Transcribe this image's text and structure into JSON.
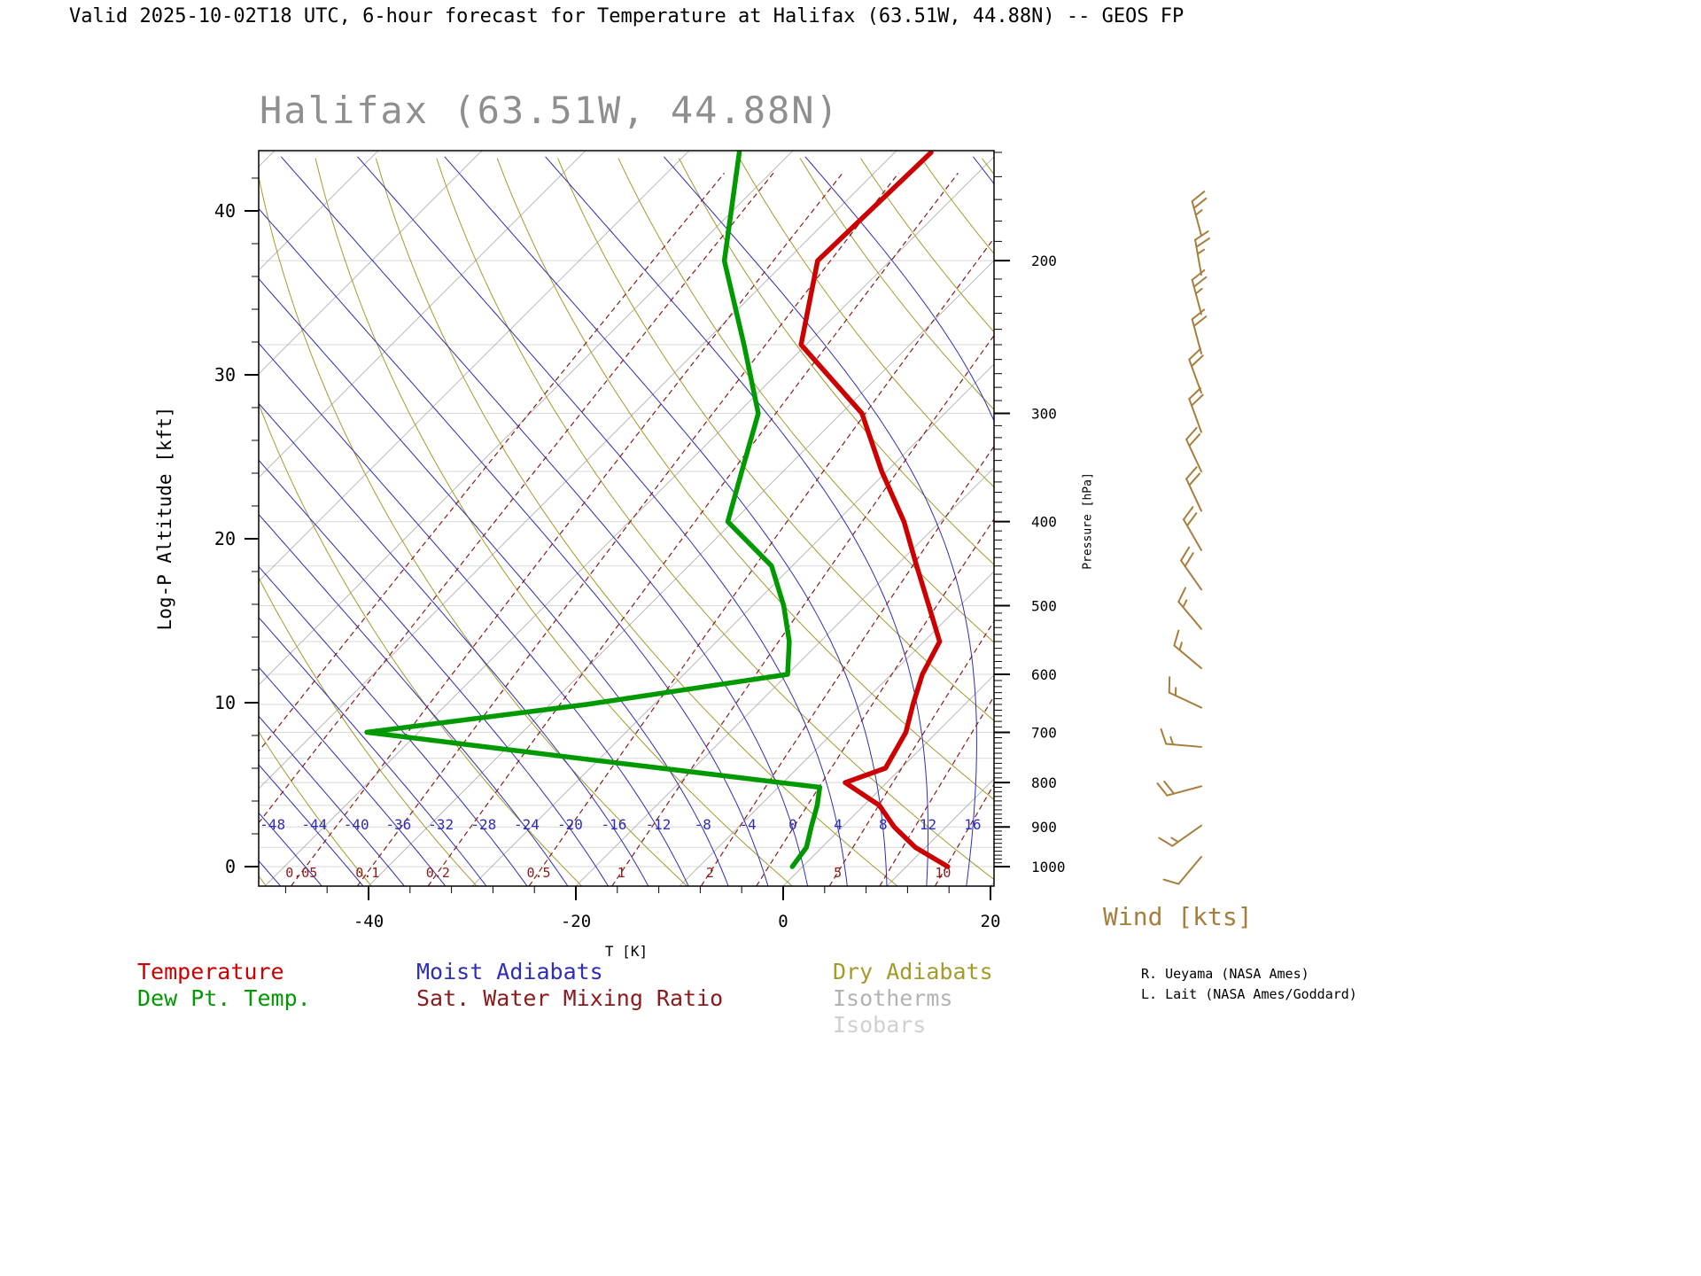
{
  "header": {
    "title": "Valid 2025-10-02T18 UTC, 6-hour forecast for Temperature at Halifax (63.51W, 44.88N) -- GEOS FP"
  },
  "chart_data": {
    "type": "line",
    "variant": "skew-T log-P sounding",
    "title": "Halifax (63.51W, 44.88N)",
    "xlabel": "T [K]",
    "ylabel_left": "Log-P Altitude [kft]",
    "ylabel_right": "Pressure [hPa]",
    "axes": {
      "x_ticks_K": [
        -40,
        -20,
        0,
        20
      ],
      "x_minor_ticks": {
        "min": -48,
        "max": 20,
        "step": 4
      },
      "alt_ticks_kft": [
        0,
        10,
        20,
        30,
        40
      ],
      "alt_minor_step_kft": 2,
      "pressure_ticks_hPa": [
        200,
        300,
        400,
        500,
        600,
        700,
        800,
        900,
        1000
      ],
      "pressure_minor_ticks": {
        "min": 150,
        "max": 1000,
        "step": 10
      },
      "alt_range_kft": [
        -1.19,
        43.67
      ],
      "temp_range_at_bottom_K": [
        -50.6,
        20.3
      ],
      "skew": "45deg isotherms",
      "grid": "skew-T background families"
    },
    "background": {
      "isotherms": {
        "min": -130,
        "max": 40,
        "step": 10
      },
      "isobars_hPa": [
        150,
        200,
        250,
        300,
        350,
        400,
        450,
        500,
        550,
        600,
        650,
        700,
        750,
        800,
        850,
        900,
        950,
        1000
      ],
      "dry_adiabats_theta_K": {
        "min": 220,
        "max": 400,
        "step": 10
      },
      "moist_adiabats_T1000_C": {
        "min": -64,
        "max": 40,
        "step": 4
      },
      "moist_adiabat_labels_C": [
        -48,
        -44,
        -40,
        -36,
        -32,
        -28,
        -24,
        -20,
        -16,
        -12,
        -8,
        -4,
        0,
        4,
        8,
        12,
        16
      ],
      "mixing_ratio_lines_gkg": [
        0.01,
        0.02,
        0.05,
        0.1,
        0.2,
        0.5,
        1,
        2,
        3,
        5,
        7,
        10,
        15,
        20
      ],
      "mixing_ratio_labels_gkg": [
        "0.05",
        "0.1",
        "0.2",
        "0.5",
        "1",
        "2",
        "5",
        "10"
      ]
    },
    "series": [
      {
        "name": "Temperature",
        "color": "#cc0000",
        "points_p_hPa_T_C": [
          [
            1000,
            14
          ],
          [
            950,
            9
          ],
          [
            900,
            5
          ],
          [
            850,
            1.5
          ],
          [
            800,
            -4
          ],
          [
            770,
            -1.5
          ],
          [
            700,
            -3
          ],
          [
            650,
            -5
          ],
          [
            600,
            -7
          ],
          [
            550,
            -8.5
          ],
          [
            500,
            -13
          ],
          [
            450,
            -18
          ],
          [
            400,
            -23.5
          ],
          [
            350,
            -30.5
          ],
          [
            300,
            -38
          ],
          [
            250,
            -50.5
          ],
          [
            200,
            -57
          ],
          [
            150,
            -56.5
          ]
        ]
      },
      {
        "name": "Dew Pt. Temp.",
        "color": "#009900",
        "points_p_hPa_T_C": [
          [
            1000,
            -1
          ],
          [
            950,
            -1.5
          ],
          [
            900,
            -3
          ],
          [
            850,
            -4.5
          ],
          [
            810,
            -6
          ],
          [
            750,
            -32
          ],
          [
            700,
            -55
          ],
          [
            650,
            -36.5
          ],
          [
            600,
            -20
          ],
          [
            550,
            -23
          ],
          [
            500,
            -27
          ],
          [
            450,
            -32
          ],
          [
            400,
            -40.5
          ],
          [
            350,
            -44
          ],
          [
            300,
            -48
          ],
          [
            250,
            -56
          ],
          [
            200,
            -66
          ],
          [
            150,
            -75
          ]
        ]
      }
    ],
    "wind_barbs": {
      "units": "kts",
      "label": "Wind [kts]",
      "levels": [
        {
          "alt_kft": 38.5,
          "speed_kts": 25,
          "dir_deg": 345
        },
        {
          "alt_kft": 36.1,
          "speed_kts": 25,
          "dir_deg": 350
        },
        {
          "alt_kft": 33.7,
          "speed_kts": 25,
          "dir_deg": 345
        },
        {
          "alt_kft": 31.3,
          "speed_kts": 20,
          "dir_deg": 345
        },
        {
          "alt_kft": 28.9,
          "speed_kts": 20,
          "dir_deg": 340
        },
        {
          "alt_kft": 26.5,
          "speed_kts": 20,
          "dir_deg": 340
        },
        {
          "alt_kft": 24.1,
          "speed_kts": 20,
          "dir_deg": 335
        },
        {
          "alt_kft": 21.7,
          "speed_kts": 20,
          "dir_deg": 335
        },
        {
          "alt_kft": 19.3,
          "speed_kts": 20,
          "dir_deg": 330
        },
        {
          "alt_kft": 16.9,
          "speed_kts": 20,
          "dir_deg": 325
        },
        {
          "alt_kft": 14.5,
          "speed_kts": 15,
          "dir_deg": 320
        },
        {
          "alt_kft": 12.1,
          "speed_kts": 15,
          "dir_deg": 310
        },
        {
          "alt_kft": 9.7,
          "speed_kts": 15,
          "dir_deg": 295
        },
        {
          "alt_kft": 7.3,
          "speed_kts": 15,
          "dir_deg": 275
        },
        {
          "alt_kft": 4.9,
          "speed_kts": 20,
          "dir_deg": 255
        },
        {
          "alt_kft": 2.5,
          "speed_kts": 15,
          "dir_deg": 235
        },
        {
          "alt_kft": 0.6,
          "speed_kts": 10,
          "dir_deg": 220
        }
      ]
    }
  },
  "legend": {
    "items": [
      {
        "label": "Temperature",
        "color": "#cc0000"
      },
      {
        "label": "Dew Pt. Temp.",
        "color": "#009900"
      },
      {
        "label": "Moist Adiabats",
        "color": "#2e2eb8"
      },
      {
        "label": "Sat. Water Mixing Ratio",
        "color": "#8b1a1a"
      },
      {
        "label": "Dry Adiabats",
        "color": "#a39b2a"
      },
      {
        "label": "Isotherms",
        "color": "#b3b3b3"
      },
      {
        "label": "Isobars",
        "color": "#d0d0d0"
      }
    ]
  },
  "credits": {
    "line1": "R. Ueyama (NASA Ames)",
    "line2": "L. Lait (NASA Ames/Goddard)"
  },
  "colors": {
    "temperature": "#cc0000",
    "dewpoint": "#009900",
    "moist_adiabat": "#2e2eb8",
    "mixing_ratio": "#8b1a1a",
    "dry_adiabat": "#a39b2a",
    "isotherm": "#b8b8b8",
    "isobar": "#d8d8d8",
    "wind": "#a87e3c",
    "frame": "#000000",
    "chart_title": "#8f8f8f"
  }
}
